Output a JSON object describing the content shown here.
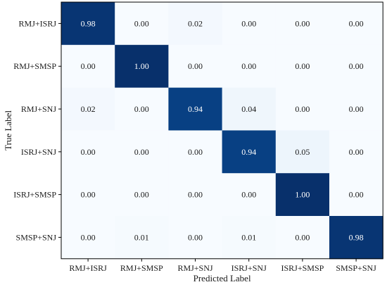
{
  "chart_data": {
    "type": "heatmap",
    "title": "",
    "xlabel": "Predicted Label",
    "ylabel": "True Label",
    "x_categories": [
      "RMJ+ISRJ",
      "RMJ+SMSP",
      "RMJ+SNJ",
      "ISRJ+SNJ",
      "ISRJ+SMSP",
      "SMSP+SNJ"
    ],
    "y_categories": [
      "RMJ+ISRJ",
      "RMJ+SMSP",
      "RMJ+SNJ",
      "ISRJ+SNJ",
      "ISRJ+SMSP",
      "SMSP+SNJ"
    ],
    "values": [
      [
        0.98,
        0.0,
        0.02,
        0.0,
        0.0,
        0.0
      ],
      [
        0.0,
        1.0,
        0.0,
        0.0,
        0.0,
        0.0
      ],
      [
        0.02,
        0.0,
        0.94,
        0.04,
        0.0,
        0.0
      ],
      [
        0.0,
        0.0,
        0.0,
        0.94,
        0.05,
        0.0
      ],
      [
        0.0,
        0.0,
        0.0,
        0.0,
        1.0,
        0.0
      ],
      [
        0.0,
        0.01,
        0.0,
        0.01,
        0.0,
        0.98
      ]
    ],
    "value_format": "0.00",
    "value_range": [
      0,
      1
    ],
    "colormap": "Blues",
    "colors": {
      "low": "#f7fbff",
      "high": "#08306b",
      "text_dark": "#1a1a1a",
      "text_light": "#ffffff",
      "axis": "#000000"
    }
  }
}
